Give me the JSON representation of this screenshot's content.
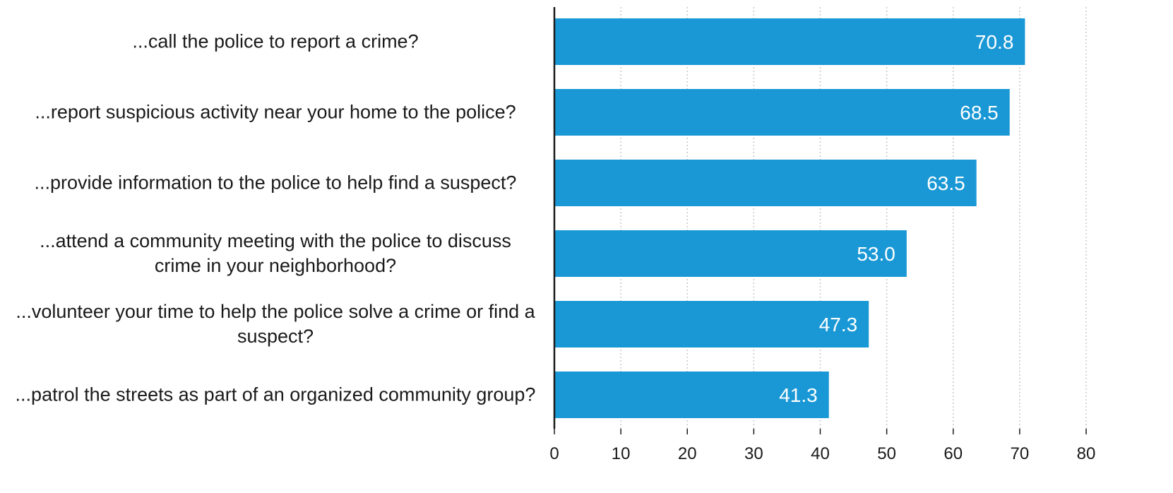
{
  "chart_data": {
    "type": "bar",
    "orientation": "horizontal",
    "categories": [
      "...call the police to report a crime?",
      "...report suspicious activity near your home to the police?",
      "...provide information to the police to help find a suspect?",
      "...attend a community meeting with the police to discuss crime in your neighborhood?",
      "...volunteer your time to help the police solve a crime or find a suspect?",
      "...patrol the streets as part of an organized community group?"
    ],
    "values": [
      70.8,
      68.5,
      63.5,
      53.0,
      47.3,
      41.3
    ],
    "value_labels": [
      "70.8",
      "68.5",
      "63.5",
      "53.0",
      "47.3",
      "41.3"
    ],
    "title": "",
    "xlabel": "",
    "ylabel": "",
    "xlim": [
      0,
      80
    ],
    "xticks": [
      0,
      10,
      20,
      30,
      40,
      50,
      60,
      70,
      80
    ],
    "grid": "vertical dotted",
    "bar_color": "#1a98d5",
    "value_label_color": "#ffffff"
  }
}
